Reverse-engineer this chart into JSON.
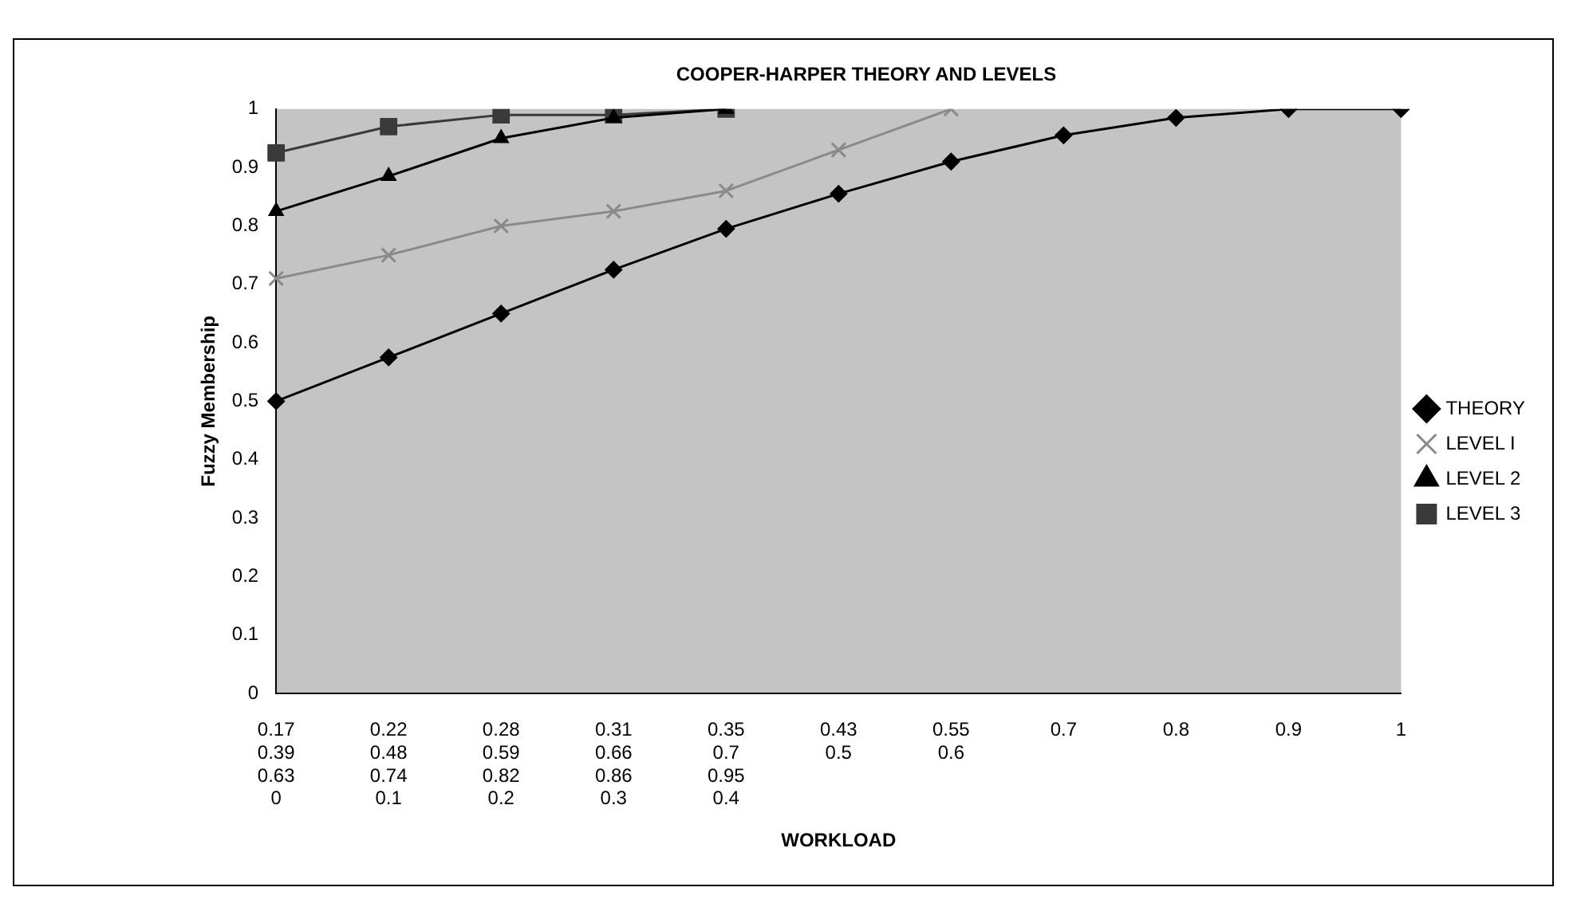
{
  "chart_data": {
    "type": "line",
    "title": "COOPER-HARPER THEORY AND LEVELS",
    "xlabel": "WORKLOAD",
    "ylabel": "Fuzzy Membership",
    "categories": [
      "0.17\n0.39\n0.63\n0",
      "0.22\n0.48\n0.74\n0.1",
      "0.28\n0.59\n0.82\n0.2",
      "0.31\n0.66\n0.86\n0.3",
      "0.35\n0.7\n0.95\n0.4",
      "0.43\n0.5",
      "0.55\n0.6",
      "0.7",
      "0.8",
      "0.9",
      "1"
    ],
    "series": [
      {
        "name": "THEORY",
        "color": "#000000",
        "marker": "diamond",
        "values": [
          0.5,
          0.575,
          0.65,
          0.725,
          0.795,
          0.855,
          0.91,
          0.955,
          0.985,
          1,
          1
        ]
      },
      {
        "name": "LEVEL I",
        "color": "#8a8a8a",
        "marker": "cross",
        "values": [
          0.71,
          0.75,
          0.8,
          0.825,
          0.86,
          0.93,
          1,
          null,
          null,
          null,
          null
        ]
      },
      {
        "name": "LEVEL 2",
        "color": "#000000",
        "marker": "triangle",
        "values": [
          0.825,
          0.885,
          0.95,
          0.985,
          1,
          null,
          null,
          null,
          null,
          null,
          null
        ]
      },
      {
        "name": "LEVEL 3",
        "color": "#3a3a3a",
        "marker": "square",
        "values": [
          0.925,
          0.97,
          0.99,
          0.99,
          1,
          null,
          null,
          null,
          null,
          null,
          null
        ]
      }
    ],
    "ylim": [
      0,
      1
    ],
    "yticks": [
      0,
      0.1,
      0.2,
      0.3,
      0.4,
      0.5,
      0.6,
      0.7,
      0.8,
      0.9,
      1
    ],
    "legend": "right",
    "line_style": "solid"
  }
}
